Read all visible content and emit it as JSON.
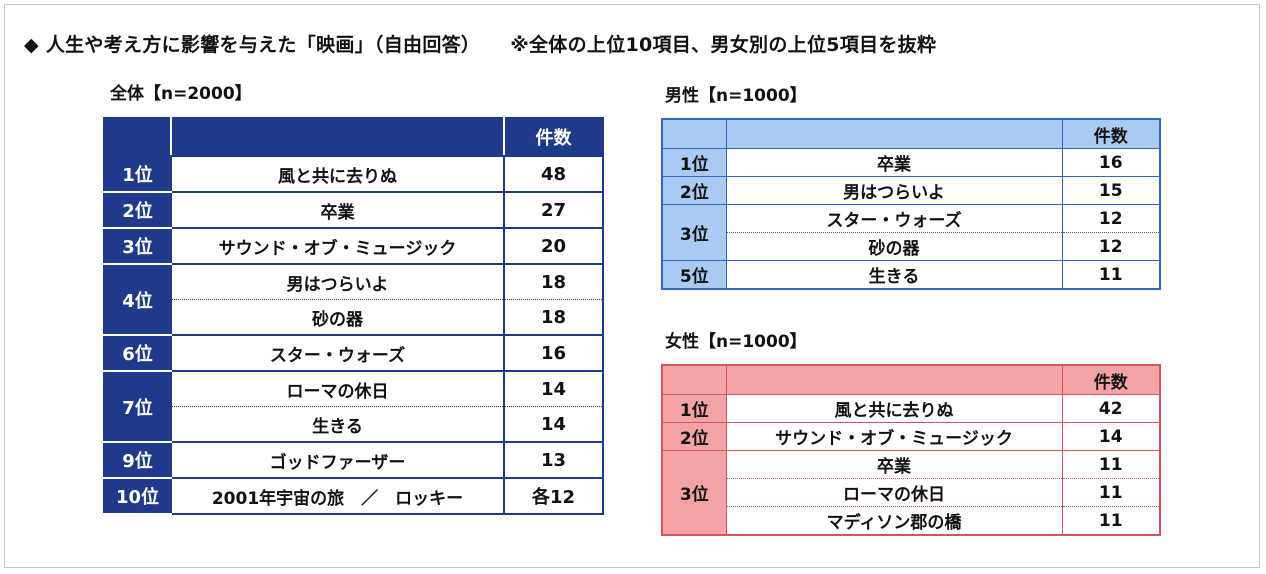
{
  "heading": {
    "title": "◆ 人生や考え方に影響を与えた「映画」（自由回答）",
    "note": "※全体の上位10項目、男女別の上位5項目を抜粋"
  },
  "overall": {
    "label": "全体【n=2000】",
    "count_header": "件数",
    "rows": [
      {
        "rank": "1位",
        "title": "風と共に去りぬ",
        "count": "48"
      },
      {
        "rank": "2位",
        "title": "卒業",
        "count": "27"
      },
      {
        "rank": "3位",
        "title": "サウンド・オブ・ミュージック",
        "count": "20"
      },
      {
        "rank": "4位",
        "title": "男はつらいよ",
        "count": "18"
      },
      {
        "rank": "",
        "title": "砂の器",
        "count": "18"
      },
      {
        "rank": "6位",
        "title": "スター・ウォーズ",
        "count": "16"
      },
      {
        "rank": "7位",
        "title": "ローマの休日",
        "count": "14"
      },
      {
        "rank": "",
        "title": "生きる",
        "count": "14"
      },
      {
        "rank": "9位",
        "title": "ゴッドファーザー",
        "count": "13"
      },
      {
        "rank": "10位",
        "title": "2001年宇宙の旅　／　ロッキー",
        "count": "各12"
      }
    ]
  },
  "male": {
    "label": "男性【n=1000】",
    "count_header": "件数",
    "rows": [
      {
        "rank": "1位",
        "title": "卒業",
        "count": "16"
      },
      {
        "rank": "2位",
        "title": "男はつらいよ",
        "count": "15"
      },
      {
        "rank": "3位",
        "title": "スター・ウォーズ",
        "count": "12"
      },
      {
        "rank": "",
        "title": "砂の器",
        "count": "12"
      },
      {
        "rank": "5位",
        "title": "生きる",
        "count": "11"
      }
    ]
  },
  "female": {
    "label": "女性【n=1000】",
    "count_header": "件数",
    "rows": [
      {
        "rank": "1位",
        "title": "風と共に去りぬ",
        "count": "42"
      },
      {
        "rank": "2位",
        "title": "サウンド・オブ・ミュージック",
        "count": "14"
      },
      {
        "rank": "3位",
        "title": "卒業",
        "count": "11"
      },
      {
        "rank": "",
        "title": "ローマの休日",
        "count": "11"
      },
      {
        "rank": "",
        "title": "マディソン郡の橋",
        "count": "11"
      }
    ]
  },
  "colors": {
    "overall_accent": "#1f3a8a",
    "male_header": "#a9cbf2",
    "male_border": "#3465c8",
    "female_header": "#f3a2a6",
    "female_border": "#d4545c"
  }
}
